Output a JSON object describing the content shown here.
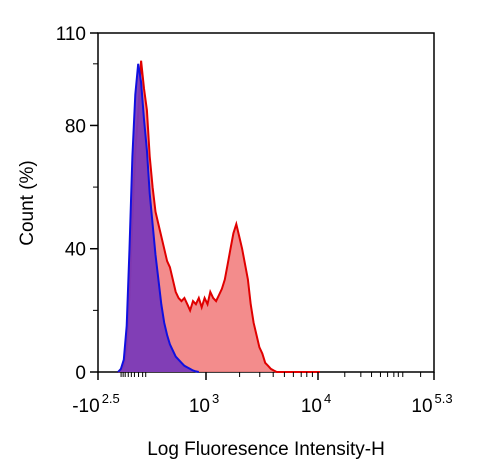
{
  "chart_data": {
    "type": "area",
    "xlabel": "Log Fluoresence Intensity-H",
    "ylabel": "Count  (%)",
    "ylim": [
      0,
      110
    ],
    "xlim": [
      -1.0,
      5.3
    ],
    "x_scale": "biexponential (log10)",
    "grid": false,
    "legend": "none",
    "y_ticks": [
      {
        "value": 0,
        "label": "0"
      },
      {
        "value": 40,
        "label": "40"
      },
      {
        "value": 80,
        "label": "80"
      },
      {
        "value": 110,
        "label": "110"
      }
    ],
    "x_ticks": [
      {
        "value": -1.0,
        "base": "-10",
        "exp": "2.5"
      },
      {
        "value": 3,
        "base": "10",
        "exp": "3"
      },
      {
        "value": 4,
        "base": "10",
        "exp": "4"
      },
      {
        "value": 5.3,
        "base": "10",
        "exp": "5.3"
      }
    ],
    "series": [
      {
        "color": "#e00000",
        "fill": "#f28080",
        "x": [
          0.0,
          0.05,
          0.1,
          0.15,
          0.2,
          0.25,
          0.3,
          0.35,
          0.4,
          0.45,
          0.5,
          0.55,
          0.6,
          0.65,
          0.7,
          0.75,
          0.8,
          0.85,
          0.9,
          0.95,
          1.0,
          1.05,
          1.1,
          1.15,
          1.2,
          1.25,
          1.3,
          1.35,
          1.4,
          1.45,
          1.5,
          1.55,
          1.6,
          1.65,
          1.7,
          1.75,
          1.8,
          1.85,
          1.9,
          1.95,
          2.0,
          2.05,
          2.1,
          2.15,
          2.2,
          2.25,
          2.3,
          2.35,
          2.4,
          2.45,
          2.5,
          2.55,
          2.6,
          2.65,
          2.7,
          2.75,
          2.8,
          2.85,
          2.9,
          2.95,
          3.0,
          3.05,
          3.1,
          3.15,
          3.2,
          3.25,
          3.3,
          3.35,
          3.4,
          3.45,
          3.5
        ],
        "y": [
          0,
          0.5,
          2,
          8,
          25,
          50,
          72,
          84,
          101,
          92,
          85,
          70,
          60,
          52,
          48,
          44,
          40,
          36,
          34,
          30,
          26,
          24,
          23,
          24,
          22,
          20,
          23,
          22,
          24,
          21,
          24,
          22,
          26,
          24,
          23,
          25,
          27,
          30,
          35,
          40,
          45,
          48,
          44,
          40,
          35,
          30,
          22,
          16,
          12,
          8,
          6,
          3,
          2,
          1,
          0.5,
          0,
          0,
          0,
          0,
          0,
          0,
          0,
          0,
          0,
          0,
          0,
          0,
          0,
          0,
          0,
          0
        ]
      },
      {
        "color": "#1010e0",
        "fill": "#7a3ab8",
        "x": [
          0.0,
          0.05,
          0.1,
          0.15,
          0.2,
          0.25,
          0.3,
          0.35,
          0.4,
          0.45,
          0.5,
          0.55,
          0.6,
          0.65,
          0.7,
          0.75,
          0.8,
          0.85,
          0.9,
          0.95,
          1.0,
          1.05,
          1.1,
          1.15,
          1.2,
          1.25,
          1.3,
          1.35,
          1.4
        ],
        "y": [
          0,
          1,
          4,
          15,
          40,
          70,
          90,
          100,
          94,
          82,
          72,
          58,
          48,
          38,
          30,
          22,
          16,
          12,
          9,
          7,
          5,
          4,
          3,
          2,
          1.5,
          1,
          0.5,
          0.2,
          0
        ]
      }
    ]
  }
}
